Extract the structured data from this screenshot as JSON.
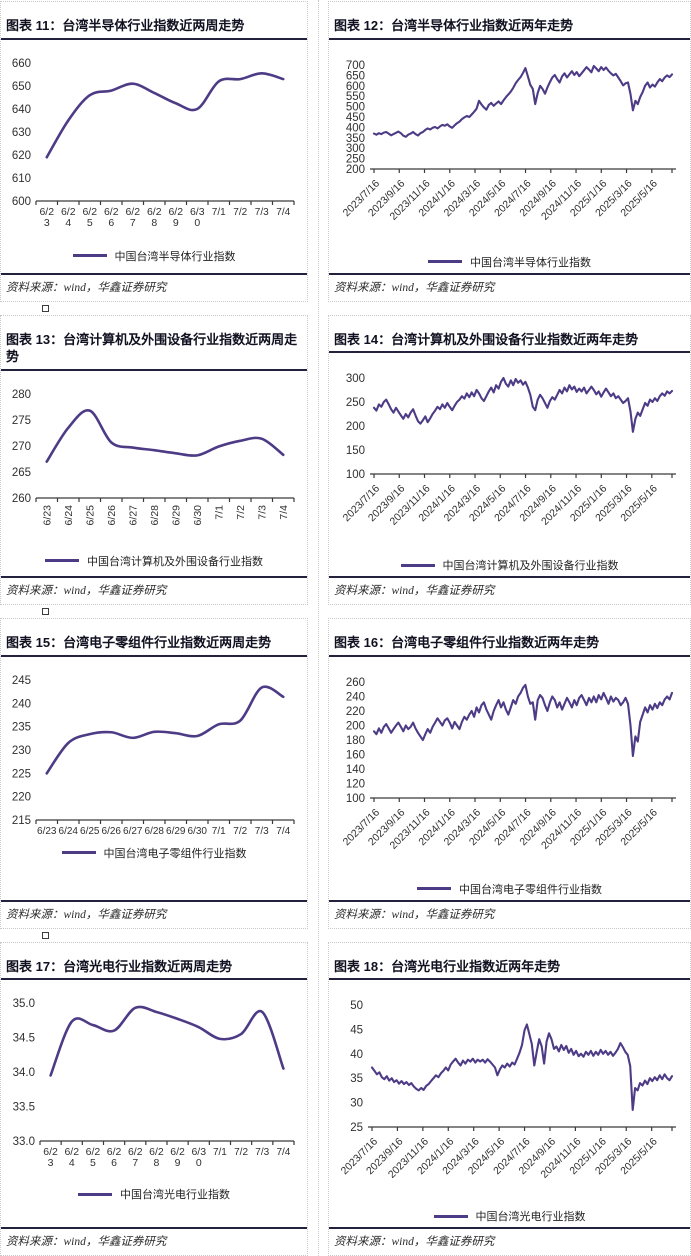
{
  "page": {
    "accent_color": "#4D3B86",
    "axis_color": "#3a3a3a",
    "source_label": "资料来源：wind，华鑫证券研究"
  },
  "figures": [
    {
      "id": "fig11",
      "title": "图表 11：台湾半导体行业指数近两周走势",
      "legend": "中国台湾半导体行业指数",
      "source": "资料来源：wind，华鑫证券研究"
    },
    {
      "id": "fig12",
      "title": "图表 12：台湾半导体行业指数近两年走势",
      "legend": "中国台湾半导体行业指数",
      "source": "资料来源：wind，华鑫证券研究"
    },
    {
      "id": "fig13",
      "title": "图表 13：台湾计算机及外围设备行业指数近两周走势",
      "legend": "中国台湾计算机及外围设备行业指数",
      "source": "资料来源：wind，华鑫证券研究"
    },
    {
      "id": "fig14",
      "title": "图表 14：台湾计算机及外围设备行业指数近两年走势",
      "legend": "中国台湾计算机及外围设备行业指数",
      "source": "资料来源：wind，华鑫证券研究"
    },
    {
      "id": "fig15",
      "title": "图表 15：台湾电子零组件行业指数近两周走势",
      "legend": "中国台湾电子零组件行业指数",
      "source": "资料来源：wind，华鑫证券研究"
    },
    {
      "id": "fig16",
      "title": "图表 16：台湾电子零组件行业指数近两年走势",
      "legend": "中国台湾电子零组件行业指数",
      "source": "资料来源：wind，华鑫证券研究"
    },
    {
      "id": "fig17",
      "title": "图表 17：台湾光电行业指数近两周走势",
      "legend": "中国台湾光电行业指数",
      "source": "资料来源：wind，华鑫证券研究"
    },
    {
      "id": "fig18",
      "title": "图表 18：台湾光电行业指数近两年走势",
      "legend": "中国台湾光电行业指数",
      "source": "资料来源：wind，华鑫证券研究"
    }
  ],
  "chart_data": [
    {
      "id": "fig11",
      "type": "line",
      "title": "图表 11：台湾半导体行业指数近两周走势",
      "x": [
        "6/23",
        "6/24",
        "6/25",
        "6/26",
        "6/27",
        "6/28",
        "6/29",
        "6/30",
        "7/1",
        "7/2",
        "7/3",
        "7/4"
      ],
      "values": [
        619,
        635,
        646,
        648,
        651,
        647,
        642.5,
        640,
        652,
        653,
        655.5,
        653
      ],
      "ylim": [
        600,
        660
      ],
      "y_step": 10,
      "x_label_style": "wrap2",
      "grid": false,
      "legend_position": "bottom",
      "line_color": "#4D3B86",
      "smooth": true
    },
    {
      "id": "fig12",
      "type": "line",
      "title": "图表 12：台湾半导体行业指数近两年走势",
      "x_tick_labels": [
        "2023/7/16",
        "2023/9/16",
        "2023/11/16",
        "2024/1/16",
        "2024/3/16",
        "2024/5/16",
        "2024/7/16",
        "2024/9/16",
        "2024/11/16",
        "2025/1/16",
        "2025/3/16",
        "2025/5/16"
      ],
      "x_tick_interval_months": 2,
      "x_span_months": 23.6,
      "values": [
        370,
        365,
        372,
        368,
        375,
        378,
        370,
        362,
        368,
        374,
        380,
        372,
        360,
        355,
        365,
        370,
        378,
        368,
        361,
        372,
        378,
        388,
        395,
        390,
        398,
        402,
        395,
        405,
        412,
        408,
        415,
        405,
        398,
        410,
        420,
        428,
        440,
        448,
        455,
        450,
        462,
        475,
        490,
        528,
        510,
        496,
        485,
        508,
        518,
        504,
        515,
        525,
        512,
        530,
        545,
        558,
        572,
        590,
        612,
        628,
        642,
        662,
        685,
        645,
        605,
        585,
        512,
        565,
        600,
        585,
        562,
        592,
        618,
        640,
        652,
        632,
        616,
        645,
        660,
        640,
        655,
        670,
        652,
        666,
        646,
        660,
        675,
        690,
        678,
        665,
        695,
        683,
        670,
        690,
        676,
        688,
        672,
        660,
        650,
        657,
        640,
        622,
        602,
        612,
        616,
        560,
        482,
        528,
        512,
        546,
        570,
        600,
        616,
        592,
        606,
        596,
        616,
        632,
        622,
        640,
        650,
        642,
        655
      ],
      "ylim": [
        200,
        700
      ],
      "y_step": 50,
      "x_label_style": "diagonal",
      "grid": false,
      "legend_position": "bottom",
      "line_color": "#4D3B86",
      "smooth": false
    },
    {
      "id": "fig13",
      "type": "line",
      "title": "图表 13：台湾计算机及外围设备行业指数近两周走势",
      "x": [
        "6/23",
        "6/24",
        "6/25",
        "6/26",
        "6/27",
        "6/28",
        "6/29",
        "6/30",
        "7/1",
        "7/2",
        "7/3",
        "7/4"
      ],
      "values": [
        267,
        273.5,
        276.8,
        270.7,
        269.7,
        269.2,
        268.6,
        268.2,
        269.9,
        271,
        271.4,
        268.3
      ],
      "ylim": [
        260,
        280
      ],
      "y_step": 5,
      "x_label_style": "vertical",
      "grid": false,
      "legend_position": "bottom",
      "line_color": "#4D3B86",
      "smooth": true
    },
    {
      "id": "fig14",
      "type": "line",
      "title": "图表 14：台湾计算机及外围设备行业指数近两年走势",
      "x_tick_labels": [
        "2023/7/16",
        "2023/9/16",
        "2023/11/16",
        "2024/1/16",
        "2024/3/16",
        "2024/5/16",
        "2024/7/16",
        "2024/9/16",
        "2024/11/16",
        "2025/1/16",
        "2025/3/16",
        "2025/5/16"
      ],
      "x_tick_interval_months": 2,
      "x_span_months": 23.6,
      "values": [
        238,
        232,
        245,
        240,
        250,
        255,
        245,
        235,
        228,
        238,
        230,
        222,
        215,
        225,
        218,
        228,
        235,
        222,
        210,
        205,
        212,
        220,
        208,
        216,
        225,
        232,
        240,
        235,
        245,
        238,
        248,
        240,
        233,
        242,
        250,
        255,
        262,
        257,
        268,
        260,
        270,
        262,
        275,
        268,
        258,
        252,
        262,
        272,
        280,
        270,
        285,
        278,
        292,
        300,
        288,
        282,
        295,
        285,
        298,
        290,
        295,
        286,
        292,
        280,
        265,
        240,
        233,
        255,
        265,
        258,
        248,
        238,
        252,
        260,
        255,
        265,
        275,
        268,
        280,
        272,
        285,
        276,
        282,
        271,
        278,
        272,
        280,
        268,
        275,
        282,
        275,
        266,
        272,
        261,
        270,
        278,
        270,
        262,
        268,
        258,
        262,
        255,
        248,
        252,
        258,
        230,
        188,
        215,
        228,
        221,
        235,
        248,
        242,
        255,
        250,
        258,
        252,
        262,
        268,
        263,
        272,
        268,
        273
      ],
      "ylim": [
        100,
        300
      ],
      "y_step": 50,
      "x_label_style": "diagonal",
      "grid": false,
      "legend_position": "bottom",
      "line_color": "#4D3B86",
      "smooth": false
    },
    {
      "id": "fig15",
      "type": "line",
      "title": "图表 15：台湾电子零组件行业指数近两周走势",
      "x": [
        "6/23",
        "6/24",
        "6/25",
        "6/26",
        "6/27",
        "6/28",
        "6/29",
        "6/30",
        "7/1",
        "7/2",
        "7/3",
        "7/4"
      ],
      "values": [
        225,
        231.5,
        233.4,
        233.8,
        232.6,
        233.9,
        233.6,
        233,
        235.5,
        236.3,
        243.4,
        241.4
      ],
      "ylim": [
        215,
        245
      ],
      "y_step": 5,
      "x_label_style": "inline",
      "grid": false,
      "legend_position": "bottom",
      "line_color": "#4D3B86",
      "smooth": true
    },
    {
      "id": "fig16",
      "type": "line",
      "title": "图表 16：台湾电子零组件行业指数近两年走势",
      "x_tick_labels": [
        "2023/7/16",
        "2023/9/16",
        "2023/11/16",
        "2024/1/16",
        "2024/3/16",
        "2024/5/16",
        "2024/7/16",
        "2024/9/16",
        "2024/11/16",
        "2025/1/16",
        "2025/3/16",
        "2025/5/16"
      ],
      "x_tick_interval_months": 2,
      "x_span_months": 23.6,
      "values": [
        192,
        188,
        196,
        190,
        198,
        202,
        196,
        190,
        195,
        200,
        204,
        198,
        192,
        200,
        195,
        198,
        204,
        196,
        190,
        185,
        180,
        188,
        195,
        190,
        198,
        204,
        210,
        205,
        200,
        207,
        210,
        204,
        196,
        205,
        200,
        195,
        205,
        212,
        208,
        215,
        220,
        212,
        225,
        218,
        228,
        232,
        222,
        215,
        208,
        220,
        228,
        235,
        225,
        232,
        222,
        215,
        225,
        235,
        230,
        240,
        245,
        252,
        256,
        240,
        230,
        232,
        208,
        235,
        242,
        238,
        228,
        220,
        232,
        240,
        235,
        225,
        232,
        222,
        230,
        238,
        232,
        225,
        235,
        228,
        238,
        242,
        235,
        228,
        238,
        232,
        240,
        232,
        242,
        236,
        245,
        238,
        230,
        240,
        233,
        238,
        235,
        228,
        232,
        238,
        230,
        200,
        158,
        185,
        178,
        205,
        215,
        225,
        218,
        228,
        222,
        230,
        224,
        232,
        228,
        236,
        240,
        236,
        245
      ],
      "ylim": [
        100,
        260
      ],
      "y_step": 20,
      "x_label_style": "diagonal",
      "grid": false,
      "legend_position": "bottom",
      "line_color": "#4D3B86",
      "smooth": false
    },
    {
      "id": "fig17",
      "type": "line",
      "title": "图表 17：台湾光电行业指数近两周走势",
      "x": [
        "6/23",
        "6/24",
        "6/25",
        "6/26",
        "6/27",
        "6/28",
        "6/29",
        "6/30",
        "7/1",
        "7/2",
        "7/3",
        "7/4"
      ],
      "values": [
        33.95,
        34.73,
        34.68,
        34.6,
        34.93,
        34.87,
        34.77,
        34.65,
        34.48,
        34.55,
        34.87,
        34.05
      ],
      "ylim": [
        33.0,
        35.0
      ],
      "y_step": 0.5,
      "y_decimals": 1,
      "x_label_style": "wrap2",
      "grid": false,
      "legend_position": "bottom",
      "line_color": "#4D3B86",
      "smooth": true
    },
    {
      "id": "fig18",
      "type": "line",
      "title": "图表 18：台湾光电行业指数近两年走势",
      "x_tick_labels": [
        "2023/7/16",
        "2023/9/16",
        "2023/11/16",
        "2024/1/16",
        "2024/3/16",
        "2024/5/16",
        "2024/7/16",
        "2024/9/16",
        "2024/11/16",
        "2025/1/16",
        "2025/3/16",
        "2025/5/16"
      ],
      "x_tick_interval_months": 2,
      "x_span_months": 23.6,
      "values": [
        37.2,
        36.5,
        35.8,
        36.2,
        35.2,
        34.8,
        35.4,
        34.5,
        35.0,
        34.2,
        34.6,
        33.9,
        34.4,
        33.8,
        34.2,
        33.6,
        34.0,
        33.3,
        32.8,
        32.5,
        33.0,
        32.6,
        33.4,
        33.8,
        34.4,
        35.0,
        35.6,
        35.2,
        36.0,
        36.5,
        37.2,
        36.6,
        37.8,
        38.4,
        39.0,
        38.2,
        37.6,
        38.6,
        38.0,
        38.8,
        38.4,
        39.0,
        38.2,
        38.8,
        38.4,
        38.8,
        38.2,
        38.9,
        38.4,
        37.8,
        37.2,
        35.6,
        36.8,
        37.6,
        37.2,
        38.0,
        37.4,
        38.2,
        37.8,
        39.0,
        40.2,
        41.8,
        44.8,
        46.0,
        44.0,
        42.0,
        37.6,
        40.5,
        43.0,
        41.5,
        38.0,
        42.5,
        44.2,
        43.0,
        41.0,
        41.5,
        40.5,
        41.8,
        40.8,
        41.6,
        40.2,
        41.0,
        39.8,
        40.6,
        39.5,
        40.0,
        39.4,
        40.4,
        39.8,
        40.6,
        39.6,
        40.4,
        39.8,
        40.8,
        40.0,
        40.6,
        39.8,
        40.4,
        39.6,
        40.2,
        41.0,
        42.2,
        41.4,
        40.4,
        39.8,
        37.5,
        28.5,
        33.0,
        32.5,
        34.0,
        33.5,
        34.5,
        33.8,
        35.0,
        34.4,
        35.2,
        34.6,
        35.6,
        34.8,
        35.8,
        35.0,
        34.6,
        35.4
      ],
      "ylim": [
        25,
        50
      ],
      "y_step": 5,
      "x_label_style": "diagonal",
      "grid": false,
      "legend_position": "bottom",
      "line_color": "#4D3B86",
      "smooth": false
    }
  ]
}
